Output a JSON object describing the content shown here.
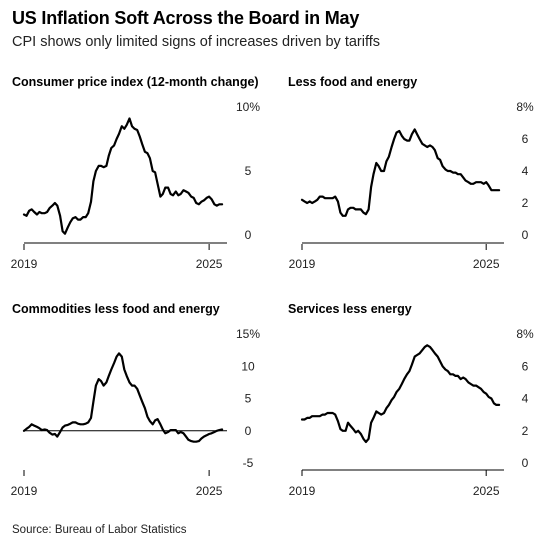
{
  "header": {
    "title": "US Inflation Soft Across the Board in May",
    "subtitle": "CPI shows only limited signs of increases driven by tariffs"
  },
  "source": "Source: Bureau of Labor Statistics",
  "colors": {
    "line": "#000000",
    "baseline": "#000000",
    "background": "#ffffff"
  },
  "chart_data": [
    {
      "type": "line",
      "title": "Consumer price index (12-month change)",
      "x_tick_labels": [
        "2019",
        "2025"
      ],
      "y_tick_labels": [
        "10%",
        "5",
        "0"
      ],
      "y_ticks": [
        10,
        5,
        0
      ],
      "xlim": [
        2019.0,
        2025.45
      ],
      "ylim": [
        0,
        10
      ],
      "zero_line": false,
      "series": [
        {
          "x": [
            2019.0,
            2019.08,
            2019.17,
            2019.25,
            2019.33,
            2019.42,
            2019.5,
            2019.58,
            2019.67,
            2019.75,
            2019.83,
            2019.92,
            2020.0,
            2020.08,
            2020.17,
            2020.25,
            2020.33,
            2020.42,
            2020.5,
            2020.58,
            2020.67,
            2020.75,
            2020.83,
            2020.92,
            2021.0,
            2021.08,
            2021.17,
            2021.25,
            2021.33,
            2021.42,
            2021.5,
            2021.58,
            2021.67,
            2021.75,
            2021.83,
            2021.92,
            2022.0,
            2022.08,
            2022.17,
            2022.25,
            2022.33,
            2022.42,
            2022.5,
            2022.58,
            2022.67,
            2022.75,
            2022.83,
            2022.92,
            2023.0,
            2023.08,
            2023.17,
            2023.25,
            2023.33,
            2023.42,
            2023.5,
            2023.58,
            2023.67,
            2023.75,
            2023.83,
            2023.92,
            2024.0,
            2024.08,
            2024.17,
            2024.25,
            2024.33,
            2024.42,
            2024.5,
            2024.58,
            2024.67,
            2024.75,
            2024.83,
            2024.92,
            2025.0,
            2025.08,
            2025.17,
            2025.25,
            2025.33,
            2025.42
          ],
          "y": [
            1.6,
            1.5,
            1.9,
            2.0,
            1.8,
            1.6,
            1.8,
            1.7,
            1.7,
            1.8,
            2.1,
            2.3,
            2.5,
            2.3,
            1.5,
            0.3,
            0.1,
            0.6,
            1.0,
            1.3,
            1.4,
            1.2,
            1.2,
            1.4,
            1.4,
            1.7,
            2.6,
            4.2,
            5.0,
            5.4,
            5.4,
            5.3,
            5.4,
            6.2,
            6.8,
            7.0,
            7.5,
            7.9,
            8.5,
            8.3,
            8.6,
            9.1,
            8.5,
            8.3,
            8.2,
            7.7,
            7.1,
            6.5,
            6.4,
            6.0,
            5.0,
            4.9,
            4.0,
            3.0,
            3.2,
            3.7,
            3.7,
            3.2,
            3.1,
            3.4,
            3.1,
            3.2,
            3.5,
            3.4,
            3.3,
            3.0,
            2.9,
            2.5,
            2.4,
            2.6,
            2.7,
            2.9,
            3.0,
            2.8,
            2.4,
            2.3,
            2.4,
            2.4
          ]
        }
      ]
    },
    {
      "type": "line",
      "title": "Less food and energy",
      "x_tick_labels": [
        "2019",
        "2025"
      ],
      "y_tick_labels": [
        "8%",
        "6",
        "4",
        "2",
        "0"
      ],
      "y_ticks": [
        8,
        6,
        4,
        2,
        0
      ],
      "xlim": [
        2019.0,
        2025.45
      ],
      "ylim": [
        0,
        8
      ],
      "zero_line": false,
      "series": [
        {
          "x": [
            2019.0,
            2019.08,
            2019.17,
            2019.25,
            2019.33,
            2019.42,
            2019.5,
            2019.58,
            2019.67,
            2019.75,
            2019.83,
            2019.92,
            2020.0,
            2020.08,
            2020.17,
            2020.25,
            2020.33,
            2020.42,
            2020.5,
            2020.58,
            2020.67,
            2020.75,
            2020.83,
            2020.92,
            2021.0,
            2021.08,
            2021.17,
            2021.25,
            2021.33,
            2021.42,
            2021.5,
            2021.58,
            2021.67,
            2021.75,
            2021.83,
            2021.92,
            2022.0,
            2022.08,
            2022.17,
            2022.25,
            2022.33,
            2022.42,
            2022.5,
            2022.58,
            2022.67,
            2022.75,
            2022.83,
            2022.92,
            2023.0,
            2023.08,
            2023.17,
            2023.25,
            2023.33,
            2023.42,
            2023.5,
            2023.58,
            2023.67,
            2023.75,
            2023.83,
            2023.92,
            2024.0,
            2024.08,
            2024.17,
            2024.25,
            2024.33,
            2024.42,
            2024.5,
            2024.58,
            2024.67,
            2024.75,
            2024.83,
            2024.92,
            2025.0,
            2025.08,
            2025.17,
            2025.25,
            2025.33,
            2025.42
          ],
          "y": [
            2.2,
            2.1,
            2.0,
            2.1,
            2.0,
            2.1,
            2.2,
            2.4,
            2.4,
            2.3,
            2.3,
            2.3,
            2.3,
            2.4,
            2.1,
            1.4,
            1.2,
            1.2,
            1.6,
            1.7,
            1.7,
            1.6,
            1.6,
            1.6,
            1.4,
            1.3,
            1.6,
            3.0,
            3.8,
            4.5,
            4.3,
            4.0,
            4.0,
            4.6,
            4.9,
            5.5,
            6.0,
            6.4,
            6.5,
            6.2,
            6.0,
            5.9,
            5.9,
            6.3,
            6.6,
            6.3,
            6.0,
            5.7,
            5.6,
            5.5,
            5.6,
            5.5,
            5.3,
            4.8,
            4.7,
            4.3,
            4.1,
            4.0,
            4.0,
            3.9,
            3.9,
            3.8,
            3.8,
            3.6,
            3.4,
            3.3,
            3.2,
            3.2,
            3.3,
            3.3,
            3.3,
            3.2,
            3.3,
            3.1,
            2.8,
            2.8,
            2.8,
            2.8
          ]
        }
      ]
    },
    {
      "type": "line",
      "title": "Commodities less food and energy",
      "x_tick_labels": [
        "2019",
        "2025"
      ],
      "y_tick_labels": [
        "15%",
        "10",
        "5",
        "0",
        "-5"
      ],
      "y_ticks": [
        15,
        10,
        5,
        0,
        -5
      ],
      "xlim": [
        2019.0,
        2025.45
      ],
      "ylim": [
        -5,
        15
      ],
      "zero_line": true,
      "series": [
        {
          "x": [
            2019.0,
            2019.08,
            2019.17,
            2019.25,
            2019.33,
            2019.42,
            2019.5,
            2019.58,
            2019.67,
            2019.75,
            2019.83,
            2019.92,
            2020.0,
            2020.08,
            2020.17,
            2020.25,
            2020.33,
            2020.42,
            2020.5,
            2020.58,
            2020.67,
            2020.75,
            2020.83,
            2020.92,
            2021.0,
            2021.08,
            2021.17,
            2021.25,
            2021.33,
            2021.42,
            2021.5,
            2021.58,
            2021.67,
            2021.75,
            2021.83,
            2021.92,
            2022.0,
            2022.08,
            2022.17,
            2022.25,
            2022.33,
            2022.42,
            2022.5,
            2022.58,
            2022.67,
            2022.75,
            2022.83,
            2022.92,
            2023.0,
            2023.08,
            2023.17,
            2023.25,
            2023.33,
            2023.42,
            2023.5,
            2023.58,
            2023.67,
            2023.75,
            2023.83,
            2023.92,
            2024.0,
            2024.08,
            2024.17,
            2024.25,
            2024.33,
            2024.42,
            2024.5,
            2024.58,
            2024.67,
            2024.75,
            2024.83,
            2024.92,
            2025.0,
            2025.08,
            2025.17,
            2025.25,
            2025.33,
            2025.42
          ],
          "y": [
            0.0,
            0.3,
            0.6,
            1.0,
            0.8,
            0.6,
            0.4,
            0.1,
            0.2,
            0.1,
            -0.3,
            -0.6,
            -0.5,
            -0.9,
            -0.2,
            0.5,
            0.8,
            0.9,
            1.1,
            1.3,
            1.3,
            1.1,
            1.0,
            1.0,
            1.1,
            1.3,
            2.0,
            4.5,
            7.0,
            8.0,
            7.7,
            7.0,
            7.5,
            8.5,
            9.5,
            10.5,
            11.5,
            12.0,
            11.5,
            9.5,
            8.5,
            7.5,
            7.0,
            7.0,
            6.5,
            5.5,
            4.5,
            3.5,
            2.2,
            1.5,
            1.0,
            1.6,
            1.8,
            1.0,
            0.2,
            -0.4,
            -0.2,
            0.1,
            0.1,
            0.1,
            -0.4,
            -0.2,
            -0.4,
            -0.9,
            -1.4,
            -1.6,
            -1.7,
            -1.7,
            -1.6,
            -1.2,
            -0.9,
            -0.7,
            -0.5,
            -0.4,
            -0.2,
            0.0,
            0.1,
            0.2
          ]
        }
      ]
    },
    {
      "type": "line",
      "title": "Services less energy",
      "x_tick_labels": [
        "2019",
        "2025"
      ],
      "y_tick_labels": [
        "8%",
        "6",
        "4",
        "2",
        "0"
      ],
      "y_ticks": [
        8,
        6,
        4,
        2,
        0
      ],
      "xlim": [
        2019.0,
        2025.45
      ],
      "ylim": [
        0,
        8
      ],
      "zero_line": false,
      "series": [
        {
          "x": [
            2019.0,
            2019.08,
            2019.17,
            2019.25,
            2019.33,
            2019.42,
            2019.5,
            2019.58,
            2019.67,
            2019.75,
            2019.83,
            2019.92,
            2020.0,
            2020.08,
            2020.17,
            2020.25,
            2020.33,
            2020.42,
            2020.5,
            2020.58,
            2020.67,
            2020.75,
            2020.83,
            2020.92,
            2021.0,
            2021.08,
            2021.17,
            2021.25,
            2021.33,
            2021.42,
            2021.5,
            2021.58,
            2021.67,
            2021.75,
            2021.83,
            2021.92,
            2022.0,
            2022.08,
            2022.17,
            2022.25,
            2022.33,
            2022.42,
            2022.5,
            2022.58,
            2022.67,
            2022.75,
            2022.83,
            2022.92,
            2023.0,
            2023.08,
            2023.17,
            2023.25,
            2023.33,
            2023.42,
            2023.5,
            2023.58,
            2023.67,
            2023.75,
            2023.83,
            2023.92,
            2024.0,
            2024.08,
            2024.17,
            2024.25,
            2024.33,
            2024.42,
            2024.5,
            2024.58,
            2024.67,
            2024.75,
            2024.83,
            2024.92,
            2025.0,
            2025.08,
            2025.17,
            2025.25,
            2025.33,
            2025.42
          ],
          "y": [
            2.7,
            2.7,
            2.8,
            2.8,
            2.9,
            2.9,
            2.9,
            2.9,
            3.0,
            3.0,
            3.1,
            3.1,
            3.1,
            3.0,
            2.6,
            2.1,
            2.0,
            2.0,
            2.5,
            2.3,
            2.1,
            1.9,
            2.0,
            1.8,
            1.5,
            1.3,
            1.5,
            2.5,
            2.8,
            3.2,
            3.1,
            3.0,
            3.1,
            3.4,
            3.6,
            3.9,
            4.1,
            4.4,
            4.6,
            4.9,
            5.2,
            5.5,
            5.7,
            6.1,
            6.6,
            6.7,
            6.8,
            7.0,
            7.2,
            7.3,
            7.2,
            7.0,
            6.8,
            6.6,
            6.3,
            6.0,
            5.8,
            5.7,
            5.5,
            5.5,
            5.4,
            5.4,
            5.2,
            5.3,
            5.2,
            5.0,
            4.9,
            4.8,
            4.8,
            4.7,
            4.6,
            4.4,
            4.3,
            4.1,
            4.0,
            3.7,
            3.6,
            3.6
          ]
        }
      ]
    }
  ]
}
